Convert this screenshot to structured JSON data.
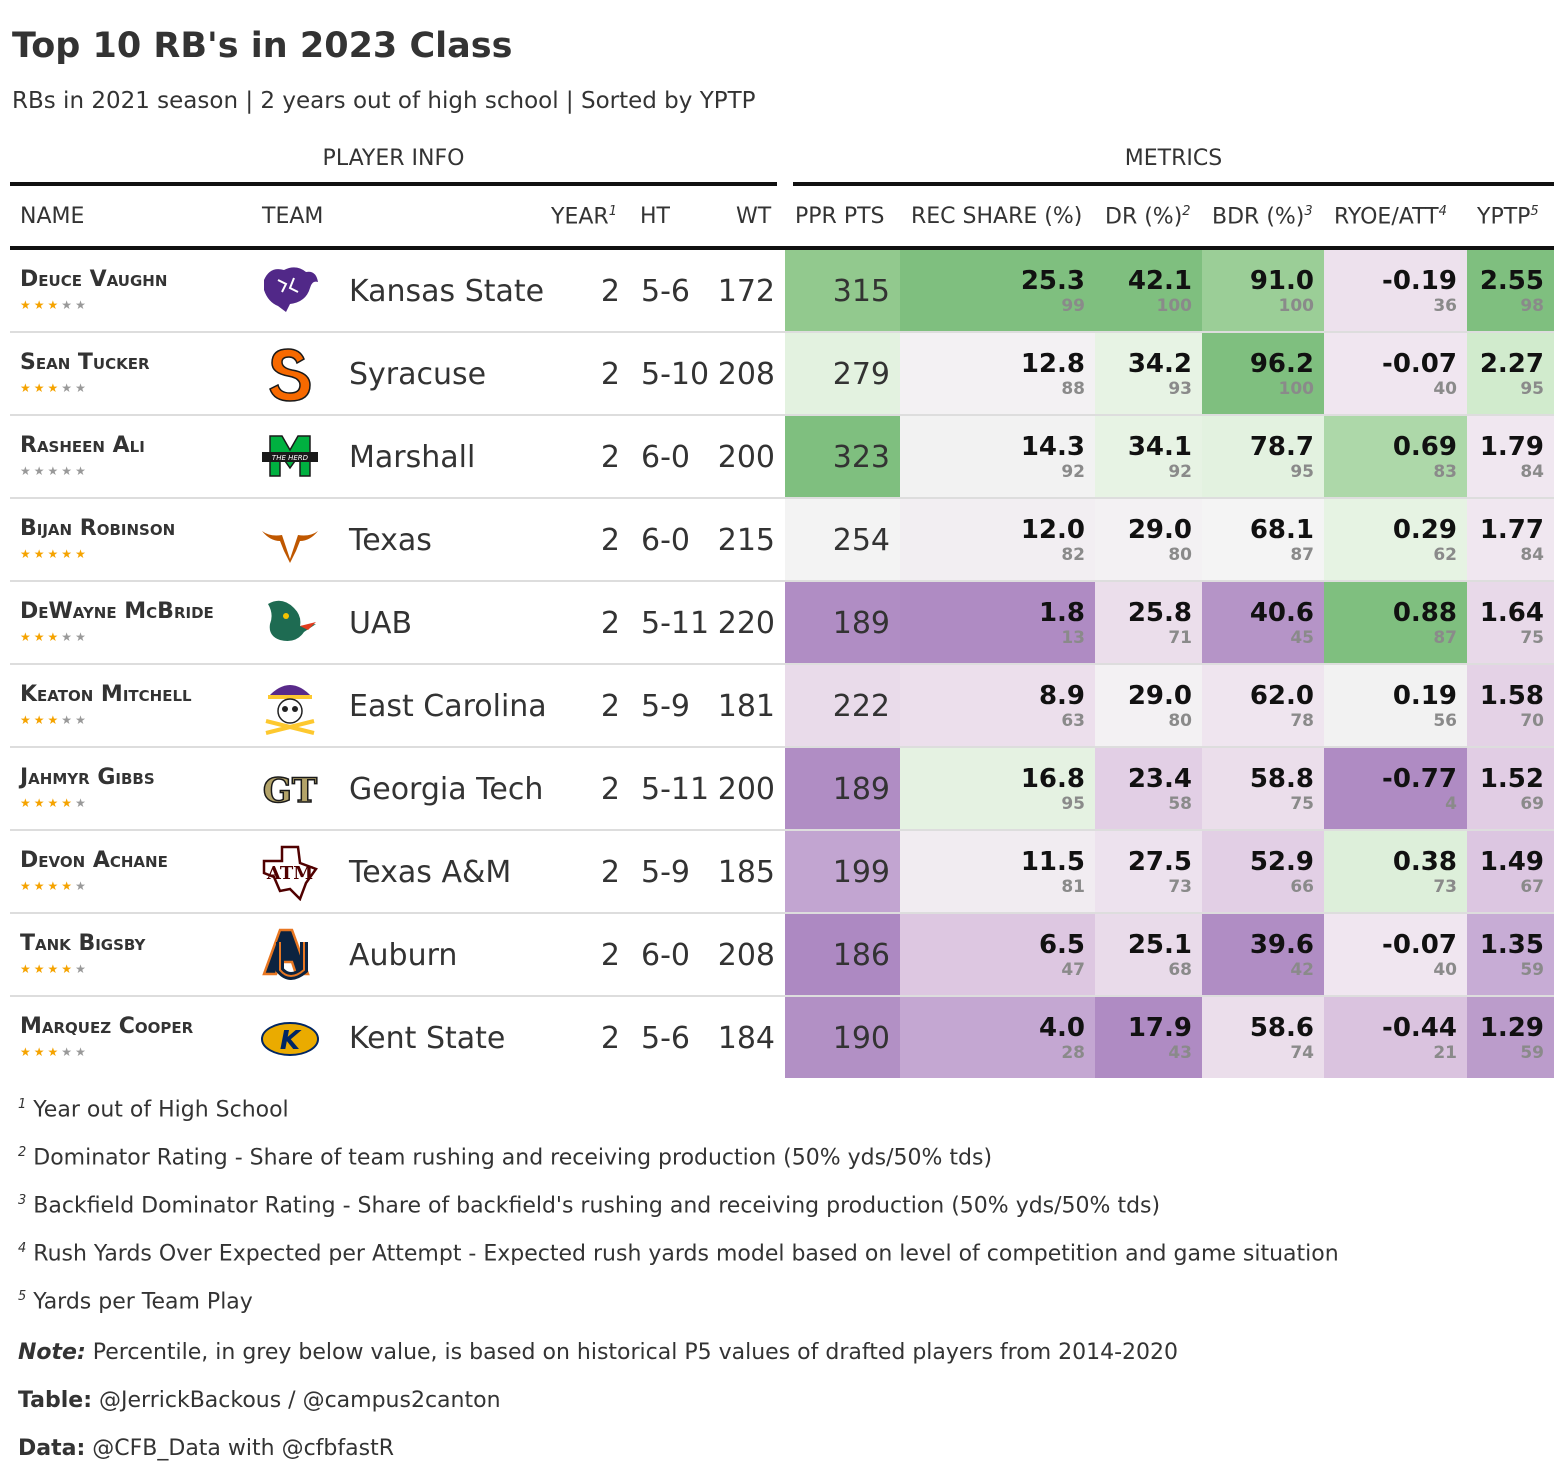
{
  "title": "Top 10 RB's in 2023 Class",
  "subtitle": "RBs in 2021 season | 2 years out of high school | Sorted by YPTP",
  "spanners": {
    "info": "PLAYER INFO",
    "metrics": "METRICS"
  },
  "columns": {
    "name": "NAME",
    "team": "TEAM",
    "year": "YEAR",
    "year_sup": "1",
    "ht": "HT",
    "wt": "WT",
    "ppr": "PPR PTS",
    "rec": "REC SHARE (%)",
    "dr": "DR (%)",
    "dr_sup": "2",
    "bdr": "BDR (%)",
    "bdr_sup": "3",
    "ryoe": "RYOE/ATT",
    "ryoe_sup": "4",
    "yptp": "YPTP",
    "yptp_sup": "5"
  },
  "colors": {
    "green_strong": "#7fbf7f",
    "green_mid": "#a6d6a2",
    "green_light": "#cfeacb",
    "green_pale": "#e6f3e3",
    "neutral": "#f3f1f3",
    "purple_pale": "#ecdfec",
    "purple_light": "#ddc6e1",
    "purple_mid": "#c4a7d2",
    "purple_strong": "#af8bc3"
  },
  "rows": [
    {
      "name": "Deuce Vaughn",
      "stars": 3,
      "team": "Kansas State",
      "logo": "kansas-state-wildcat-logo",
      "year": "2",
      "ht": "5-6",
      "wt": "172",
      "ppr": "315",
      "ppr_bg": "#92c98e",
      "rec": "25.3",
      "rec_p": "99",
      "rec_bg": "#7fbf7f",
      "dr": "42.1",
      "dr_p": "100",
      "dr_bg": "#7fbf7f",
      "bdr": "91.0",
      "bdr_p": "100",
      "bdr_bg": "#9bce97",
      "ryoe": "-0.19",
      "ryoe_p": "36",
      "ryoe_bg": "#ede1ed",
      "yptp": "2.55",
      "yptp_p": "98",
      "yptp_bg": "#7fbf7f"
    },
    {
      "name": "Sean Tucker",
      "stars": 3,
      "team": "Syracuse",
      "logo": "syracuse-s-logo",
      "year": "2",
      "ht": "5-10",
      "wt": "208",
      "ppr": "279",
      "ppr_bg": "#e3f2e0",
      "rec": "12.8",
      "rec_p": "88",
      "rec_bg": "#f3f1f3",
      "dr": "34.2",
      "dr_p": "93",
      "dr_bg": "#e7f3e4",
      "bdr": "96.2",
      "bdr_p": "100",
      "bdr_bg": "#7fbf7f",
      "ryoe": "-0.07",
      "ryoe_p": "40",
      "ryoe_bg": "#f0e6f0",
      "yptp": "2.27",
      "yptp_p": "95",
      "yptp_bg": "#d1ebcd"
    },
    {
      "name": "Rasheen Ali",
      "stars": 0,
      "team": "Marshall",
      "logo": "marshall-m-logo",
      "year": "2",
      "ht": "6-0",
      "wt": "200",
      "ppr": "323",
      "ppr_bg": "#7fbf7f",
      "rec": "14.3",
      "rec_p": "92",
      "rec_bg": "#f2f2f2",
      "dr": "34.1",
      "dr_p": "92",
      "dr_bg": "#e7f3e4",
      "bdr": "78.7",
      "bdr_p": "95",
      "bdr_bg": "#e3f2e0",
      "ryoe": "0.69",
      "ryoe_p": "83",
      "ryoe_bg": "#add8a9",
      "yptp": "1.79",
      "yptp_p": "84",
      "yptp_bg": "#f0e7f0"
    },
    {
      "name": "Bijan Robinson",
      "stars": 5,
      "team": "Texas",
      "logo": "texas-longhorn-logo",
      "year": "2",
      "ht": "6-0",
      "wt": "215",
      "ppr": "254",
      "ppr_bg": "#f3f3f3",
      "rec": "12.0",
      "rec_p": "82",
      "rec_bg": "#f2eef2",
      "dr": "29.0",
      "dr_p": "80",
      "dr_bg": "#f3f1f3",
      "bdr": "68.1",
      "bdr_p": "87",
      "bdr_bg": "#f4f4f4",
      "ryoe": "0.29",
      "ryoe_p": "62",
      "ryoe_bg": "#e6f3e3",
      "yptp": "1.77",
      "yptp_p": "84",
      "yptp_bg": "#f0e7f0"
    },
    {
      "name": "DeWayne McBride",
      "stars": 3,
      "team": "UAB",
      "logo": "uab-dragon-logo",
      "year": "2",
      "ht": "5-11",
      "wt": "220",
      "ppr": "189",
      "ppr_bg": "#b08dc4",
      "rec": "1.8",
      "rec_p": "13",
      "rec_bg": "#af8bc3",
      "dr": "25.8",
      "dr_p": "71",
      "dr_bg": "#ebdeeb",
      "bdr": "40.6",
      "bdr_p": "45",
      "bdr_bg": "#b594c7",
      "ryoe": "0.88",
      "ryoe_p": "87",
      "ryoe_bg": "#7fbf7f",
      "yptp": "1.64",
      "yptp_p": "75",
      "yptp_bg": "#e8d9e9"
    },
    {
      "name": "Keaton Mitchell",
      "stars": 3,
      "team": "East Carolina",
      "logo": "ecu-pirate-logo",
      "year": "2",
      "ht": "5-9",
      "wt": "181",
      "ppr": "222",
      "ppr_bg": "#e9dbea",
      "rec": "8.9",
      "rec_p": "63",
      "rec_bg": "#ecdfec",
      "dr": "29.0",
      "dr_p": "80",
      "dr_bg": "#f3f1f3",
      "bdr": "62.0",
      "bdr_p": "78",
      "bdr_bg": "#efe5ef",
      "ryoe": "0.19",
      "ryoe_p": "56",
      "ryoe_bg": "#f2f2f2",
      "yptp": "1.58",
      "yptp_p": "70",
      "yptp_bg": "#e4d2e6"
    },
    {
      "name": "Jahmyr Gibbs",
      "stars": 4,
      "team": "Georgia Tech",
      "logo": "georgia-tech-gt-logo",
      "year": "2",
      "ht": "5-11",
      "wt": "200",
      "ppr": "189",
      "ppr_bg": "#b08dc4",
      "rec": "16.8",
      "rec_p": "95",
      "rec_bg": "#e5f2e2",
      "dr": "23.4",
      "dr_p": "58",
      "dr_bg": "#e2cfe5",
      "bdr": "58.8",
      "bdr_p": "75",
      "bdr_bg": "#ebdeeb",
      "ryoe": "-0.77",
      "ryoe_p": "4",
      "ryoe_bg": "#af8bc3",
      "yptp": "1.52",
      "yptp_p": "69",
      "yptp_bg": "#e1cde4"
    },
    {
      "name": "Devon Achane",
      "stars": 4,
      "team": "Texas A&M",
      "logo": "texas-am-logo",
      "year": "2",
      "ht": "5-9",
      "wt": "185",
      "ppr": "199",
      "ppr_bg": "#c2a5d1",
      "rec": "11.5",
      "rec_p": "81",
      "rec_bg": "#f1ecf1",
      "dr": "27.5",
      "dr_p": "73",
      "dr_bg": "#ede2ee",
      "bdr": "52.9",
      "bdr_p": "66",
      "bdr_bg": "#e2cfe5",
      "ryoe": "0.38",
      "ryoe_p": "73",
      "ryoe_bg": "#ddefda",
      "yptp": "1.49",
      "yptp_p": "67",
      "yptp_bg": "#dcc6e1"
    },
    {
      "name": "Tank Bigsby",
      "stars": 4,
      "team": "Auburn",
      "logo": "auburn-au-logo",
      "year": "2",
      "ht": "6-0",
      "wt": "208",
      "ppr": "186",
      "ppr_bg": "#ad89c2",
      "rec": "6.5",
      "rec_p": "47",
      "rec_bg": "#ddc7e1",
      "dr": "25.1",
      "dr_p": "68",
      "dr_bg": "#e9dbea",
      "bdr": "39.6",
      "bdr_p": "42",
      "bdr_bg": "#b08dc4",
      "ryoe": "-0.07",
      "ryoe_p": "40",
      "ryoe_bg": "#f0e6f0",
      "yptp": "1.35",
      "yptp_p": "59",
      "yptp_bg": "#c7acd5"
    },
    {
      "name": "Marquez Cooper",
      "stars": 3,
      "team": "Kent State",
      "logo": "kent-state-flash-logo",
      "year": "2",
      "ht": "5-6",
      "wt": "184",
      "ppr": "190",
      "ppr_bg": "#b290c5",
      "rec": "4.0",
      "rec_p": "28",
      "rec_bg": "#c4a7d2",
      "dr": "17.9",
      "dr_p": "43",
      "dr_bg": "#af8bc3",
      "bdr": "58.6",
      "bdr_p": "74",
      "bdr_bg": "#ebdeeb",
      "ryoe": "-0.44",
      "ryoe_p": "21",
      "ryoe_bg": "#dac3df",
      "yptp": "1.29",
      "yptp_p": "59",
      "yptp_bg": "#bb9ccb"
    }
  ],
  "footnotes": [
    {
      "mark": "1",
      "text": "Year out of High School"
    },
    {
      "mark": "2",
      "text": "Dominator Rating - Share of team rushing and receiving production (50% yds/50% tds)"
    },
    {
      "mark": "3",
      "text": "Backfield Dominator Rating - Share of backfield's rushing and receiving production (50% yds/50% tds)"
    },
    {
      "mark": "4",
      "text": "Rush Yards Over Expected per Attempt - Expected rush yards model based on level of competition and game situation"
    },
    {
      "mark": "5",
      "text": "Yards per Team Play"
    }
  ],
  "source_notes": {
    "note_label": "Note:",
    "note_text": " Percentile, in grey below value, is based on historical P5 values of drafted players from 2014-2020",
    "table_label": "Table:",
    "table_text": " @JerrickBackous / @campus2canton",
    "data_label": "Data:",
    "data_text": " @CFB_Data with @cfbfastR"
  }
}
